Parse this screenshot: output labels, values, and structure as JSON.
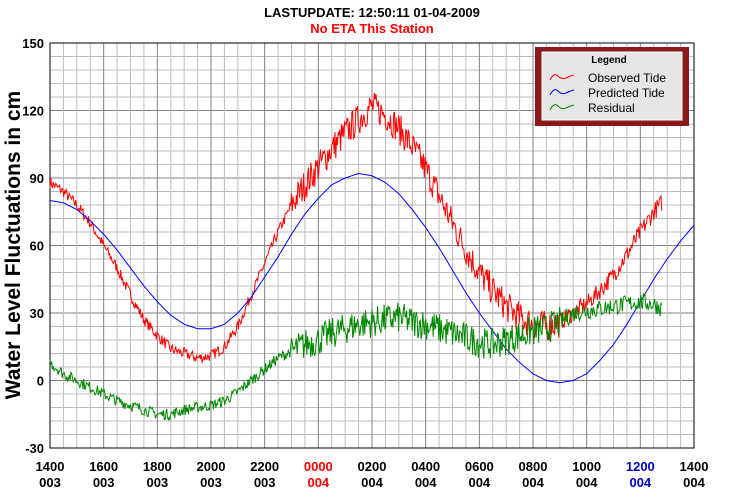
{
  "chart_data": {
    "type": "line",
    "title": "LASTUPDATE: 12:50:11  01-04-2009",
    "subtitle": "No ETA This Station",
    "xlabel": "",
    "ylabel": "Water Level Fluctuations in cm",
    "ylim": [
      -30,
      150
    ],
    "yticks": [
      -30,
      0,
      30,
      60,
      90,
      120,
      150
    ],
    "xlim": [
      0,
      24
    ],
    "grid": true,
    "legend": {
      "title": "Legend",
      "placement": "top-right"
    },
    "x_ticks": [
      {
        "x": 0,
        "time": "1400",
        "day": "003",
        "color": "#000000"
      },
      {
        "x": 2,
        "time": "1600",
        "day": "003",
        "color": "#000000"
      },
      {
        "x": 4,
        "time": "1800",
        "day": "003",
        "color": "#000000"
      },
      {
        "x": 6,
        "time": "2000",
        "day": "003",
        "color": "#000000"
      },
      {
        "x": 8,
        "time": "2200",
        "day": "003",
        "color": "#000000"
      },
      {
        "x": 10,
        "time": "0000",
        "day": "004",
        "color": "#ff0000"
      },
      {
        "x": 12,
        "time": "0200",
        "day": "004",
        "color": "#000000"
      },
      {
        "x": 14,
        "time": "0400",
        "day": "004",
        "color": "#000000"
      },
      {
        "x": 16,
        "time": "0600",
        "day": "004",
        "color": "#000000"
      },
      {
        "x": 18,
        "time": "0800",
        "day": "004",
        "color": "#000000"
      },
      {
        "x": 20,
        "time": "1000",
        "day": "004",
        "color": "#000000"
      },
      {
        "x": 22,
        "time": "1200",
        "day": "004",
        "color": "#0000cc"
      },
      {
        "x": 24,
        "time": "1400",
        "day": "004",
        "color": "#000000"
      }
    ],
    "series": [
      {
        "name": "Observed Tide",
        "color": "#ff0000",
        "x": [
          0,
          0.5,
          1,
          1.5,
          2,
          2.5,
          3,
          3.5,
          4,
          4.5,
          5,
          5.5,
          6,
          6.5,
          7,
          7.5,
          8,
          8.5,
          9,
          9.5,
          10,
          10.5,
          11,
          11.5,
          12,
          12.5,
          13,
          13.5,
          14,
          14.5,
          15,
          15.5,
          16,
          16.5,
          17,
          17.5,
          18,
          18.5,
          19,
          19.5,
          20,
          20.5,
          21,
          21.5,
          22,
          22.5,
          22.8
        ],
        "values": [
          88,
          84,
          78,
          70,
          60,
          50,
          38,
          27,
          20,
          14,
          12,
          10,
          11,
          15,
          24,
          38,
          52,
          66,
          78,
          87,
          95,
          103,
          110,
          116,
          122,
          118,
          112,
          104,
          94,
          82,
          70,
          58,
          48,
          40,
          33,
          28,
          25,
          24,
          26,
          30,
          34,
          40,
          47,
          56,
          66,
          75,
          79
        ]
      },
      {
        "name": "Predicted Tide",
        "color": "#0000ff",
        "x": [
          0,
          0.5,
          1,
          1.5,
          2,
          2.5,
          3,
          3.5,
          4,
          4.5,
          5,
          5.5,
          6,
          6.5,
          7,
          7.5,
          8,
          8.5,
          9,
          9.5,
          10,
          10.5,
          11,
          11.5,
          12,
          12.5,
          13,
          13.5,
          14,
          14.5,
          15,
          15.5,
          16,
          16.5,
          17,
          17.5,
          18,
          18.5,
          19,
          19.5,
          20,
          20.5,
          21,
          21.5,
          22,
          22.5,
          23,
          23.5,
          24
        ],
        "values": [
          80,
          79,
          76,
          71,
          65,
          58,
          50,
          42,
          35,
          29,
          25,
          23,
          23,
          25,
          30,
          37,
          46,
          55,
          65,
          74,
          81,
          87,
          90,
          92,
          91,
          88,
          83,
          76,
          68,
          59,
          49,
          39,
          30,
          22,
          14,
          8,
          3,
          0,
          -1,
          0,
          3,
          9,
          16,
          25,
          35,
          45,
          54,
          62,
          69
        ]
      },
      {
        "name": "Residual",
        "color": "#008800",
        "x": [
          0,
          0.5,
          1,
          1.5,
          2,
          2.5,
          3,
          3.5,
          4,
          4.5,
          5,
          5.5,
          6,
          6.5,
          7,
          7.5,
          8,
          8.5,
          9,
          9.5,
          10,
          10.5,
          11,
          11.5,
          12,
          12.5,
          13,
          13.5,
          14,
          14.5,
          15,
          15.5,
          16,
          16.5,
          17,
          17.5,
          18,
          18.5,
          19,
          19.5,
          20,
          20.5,
          21,
          21.5,
          22,
          22.5,
          22.8
        ],
        "values": [
          8,
          3,
          0,
          -3,
          -6,
          -9,
          -11,
          -13,
          -15,
          -15,
          -13,
          -12,
          -11,
          -9,
          -5,
          0,
          5,
          10,
          13,
          16,
          18,
          21,
          23,
          25,
          26,
          27,
          28,
          26,
          25,
          23,
          21,
          19,
          17,
          16,
          18,
          20,
          22,
          23,
          26,
          30,
          31,
          32,
          33,
          34,
          35,
          34,
          32
        ]
      }
    ]
  }
}
